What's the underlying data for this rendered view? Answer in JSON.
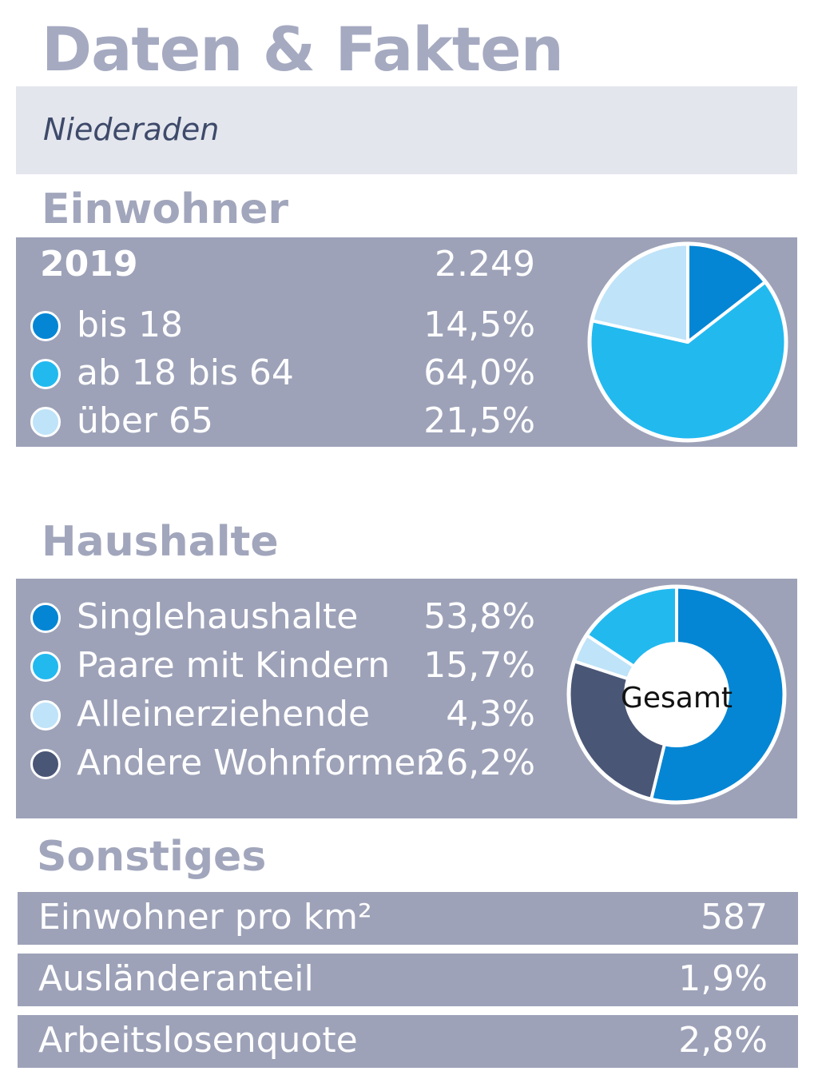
{
  "header": {
    "title": "Daten & Fakten",
    "subtitle": "Niederaden"
  },
  "sections": {
    "einwohner": "Einwohner",
    "haushalte": "Haushalte",
    "sonstiges": "Sonstiges"
  },
  "colors": {
    "dark_blue": "#0486d4",
    "mid_blue": "#22b9ef",
    "light_blue": "#bfe3f8",
    "slate": "#4a5676"
  },
  "einwohner": {
    "year": "2019",
    "total": "2.249",
    "rows": [
      {
        "label": "bis 18",
        "value": "14,5%"
      },
      {
        "label": "ab 18 bis 64",
        "value": "64,0%"
      },
      {
        "label": "über 65",
        "value": "21,5%"
      }
    ]
  },
  "haushalte": {
    "rows": [
      {
        "label": "Singlehaushalte",
        "value": "53,8%"
      },
      {
        "label": "Paare mit Kindern",
        "value": "15,7%"
      },
      {
        "label": "Alleinerziehende",
        "value": "4,3%"
      },
      {
        "label": "Andere Wohnformen",
        "value": "26,2%"
      }
    ],
    "center_label": "Gesamt"
  },
  "sonstiges": {
    "rows": [
      {
        "label": "Einwohner pro km²",
        "value": "587"
      },
      {
        "label": "Ausländeranteil",
        "value": "1,9%"
      },
      {
        "label": "Arbeitslosenquote",
        "value": "2,8%"
      }
    ]
  },
  "chart_data": [
    {
      "type": "pie",
      "categories": [
        "bis 18",
        "ab 18 bis 64",
        "über 65"
      ],
      "values": [
        14.5,
        64.0,
        21.5
      ],
      "colors": [
        "#0486d4",
        "#22b9ef",
        "#bfe3f8"
      ]
    },
    {
      "type": "pie",
      "donut": true,
      "center_label": "Gesamt",
      "categories": [
        "Singlehaushalte",
        "Andere Wohnformen",
        "Alleinerziehende",
        "Paare mit Kindern"
      ],
      "values": [
        53.8,
        26.2,
        4.3,
        15.7
      ],
      "colors": [
        "#0486d4",
        "#4a5676",
        "#bfe3f8",
        "#22b9ef"
      ]
    }
  ]
}
